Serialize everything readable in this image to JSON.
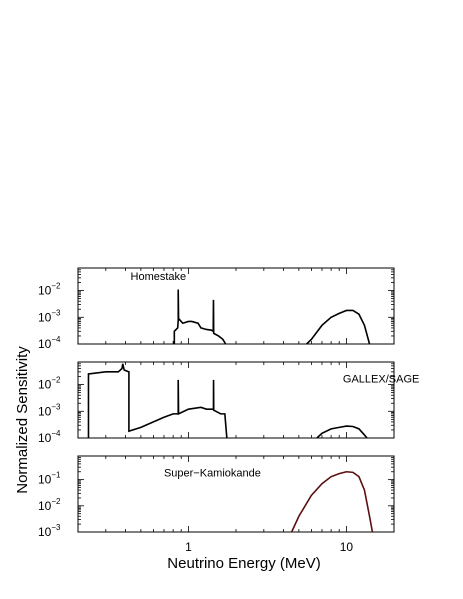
{
  "chart_data": {
    "type": "line",
    "xlabel": "Neutrino Energy (MeV)",
    "ylabel": "Normalized Sensitivity",
    "xscale": "log",
    "xlim": [
      0.2,
      20
    ],
    "x_tick_labels": [
      {
        "x": 1,
        "text": "1"
      },
      {
        "x": 10,
        "text": "10"
      }
    ],
    "grid": false,
    "panels": [
      {
        "label": "Homestake",
        "label_position": {
          "x": 0.43,
          "y": 0.025
        },
        "yscale": "log",
        "ylim": [
          0.0001,
          0.07
        ],
        "y_tick_labels": [
          {
            "exp": -2,
            "text": "10^-2"
          },
          {
            "exp": -3,
            "text": "10^-3"
          },
          {
            "exp": -4,
            "text": "10^-4"
          }
        ],
        "series": [
          {
            "color": "#000000",
            "points": [
              [
                0.814,
                0.0001
              ],
              [
                0.814,
                0.0003
              ],
              [
                0.855,
                0.0004
              ],
              [
                0.862,
                0.0008
              ],
              [
                0.8615,
                0.011
              ],
              [
                0.866,
                0.0009
              ],
              [
                0.92,
                0.0006
              ],
              [
                1.0,
                0.0007
              ],
              [
                1.05,
                0.0007
              ],
              [
                1.15,
                0.0006
              ],
              [
                1.2,
                0.0004
              ],
              [
                1.3,
                0.00035
              ],
              [
                1.4,
                0.00033
              ],
              [
                1.435,
                0.0003
              ],
              [
                1.44,
                0.0045
              ],
              [
                1.445,
                0.00025
              ],
              [
                1.55,
                0.0002
              ],
              [
                1.65,
                0.00015
              ],
              [
                1.72,
                0.0001
              ]
            ]
          },
          {
            "color": "#000000",
            "points": [
              [
                5.6,
                0.0001
              ],
              [
                6.0,
                0.00015
              ],
              [
                7.0,
                0.0005
              ],
              [
                8.0,
                0.001
              ],
              [
                9.0,
                0.0014
              ],
              [
                10.0,
                0.0018
              ],
              [
                11.0,
                0.0018
              ],
              [
                12.0,
                0.0013
              ],
              [
                13.0,
                0.0005
              ],
              [
                14.0,
                0.0001
              ]
            ]
          }
        ]
      },
      {
        "label": "GALLEX/SAGE",
        "label_position": {
          "x": 9.5,
          "y": 0.012
        },
        "yscale": "log",
        "ylim": [
          0.0001,
          0.07
        ],
        "y_tick_labels": [
          {
            "exp": -2,
            "text": "10^-2"
          },
          {
            "exp": -3,
            "text": "10^-3"
          },
          {
            "exp": -4,
            "text": "10^-4"
          }
        ],
        "series": [
          {
            "color": "#000000",
            "points": [
              [
                0.233,
                0.0001
              ],
              [
                0.233,
                0.025
              ],
              [
                0.3,
                0.03
              ],
              [
                0.36,
                0.03
              ],
              [
                0.38,
                0.04
              ],
              [
                0.384,
                0.06
              ],
              [
                0.392,
                0.035
              ],
              [
                0.42,
                0.03
              ],
              [
                0.42,
                0.00018
              ],
              [
                0.5,
                0.00025
              ],
              [
                0.6,
                0.0004
              ],
              [
                0.7,
                0.0006
              ],
              [
                0.8,
                0.0008
              ],
              [
                0.8615,
                0.0008
              ],
              [
                0.8615,
                0.015
              ],
              [
                0.866,
                0.0008
              ],
              [
                1.0,
                0.0012
              ],
              [
                1.2,
                0.0014
              ],
              [
                1.3,
                0.0012
              ],
              [
                1.44,
                0.0012
              ],
              [
                1.442,
                0.015
              ],
              [
                1.446,
                0.0011
              ],
              [
                1.6,
                0.0008
              ],
              [
                1.7,
                0.0008
              ],
              [
                1.75,
                0.0001
              ]
            ]
          },
          {
            "color": "#000000",
            "points": [
              [
                6.5,
                0.0001
              ],
              [
                7.0,
                0.00015
              ],
              [
                8.0,
                0.00022
              ],
              [
                9.0,
                0.00025
              ],
              [
                10.0,
                0.00028
              ],
              [
                11.0,
                0.00027
              ],
              [
                12.0,
                0.00022
              ],
              [
                13.0,
                0.00013
              ],
              [
                13.5,
                0.0001
              ]
            ]
          }
        ]
      },
      {
        "label": "Super−Kamiokande",
        "label_position": {
          "x": 0.7,
          "y": 0.13
        },
        "yscale": "log",
        "ylim": [
          0.001,
          0.8
        ],
        "y_tick_labels": [
          {
            "exp": -1,
            "text": "10^-1"
          },
          {
            "exp": -2,
            "text": "10^-2"
          },
          {
            "exp": -3,
            "text": "10^-3"
          }
        ],
        "series": [
          {
            "color": "#5a1010",
            "points": [
              [
                4.5,
                0.001
              ],
              [
                5.0,
                0.004
              ],
              [
                6.0,
                0.025
              ],
              [
                7.0,
                0.07
              ],
              [
                8.0,
                0.13
              ],
              [
                9.0,
                0.17
              ],
              [
                10.0,
                0.2
              ],
              [
                11.0,
                0.19
              ],
              [
                12.0,
                0.13
              ],
              [
                13.0,
                0.04
              ],
              [
                14.0,
                0.004
              ],
              [
                14.6,
                0.001
              ]
            ]
          }
        ]
      }
    ]
  }
}
